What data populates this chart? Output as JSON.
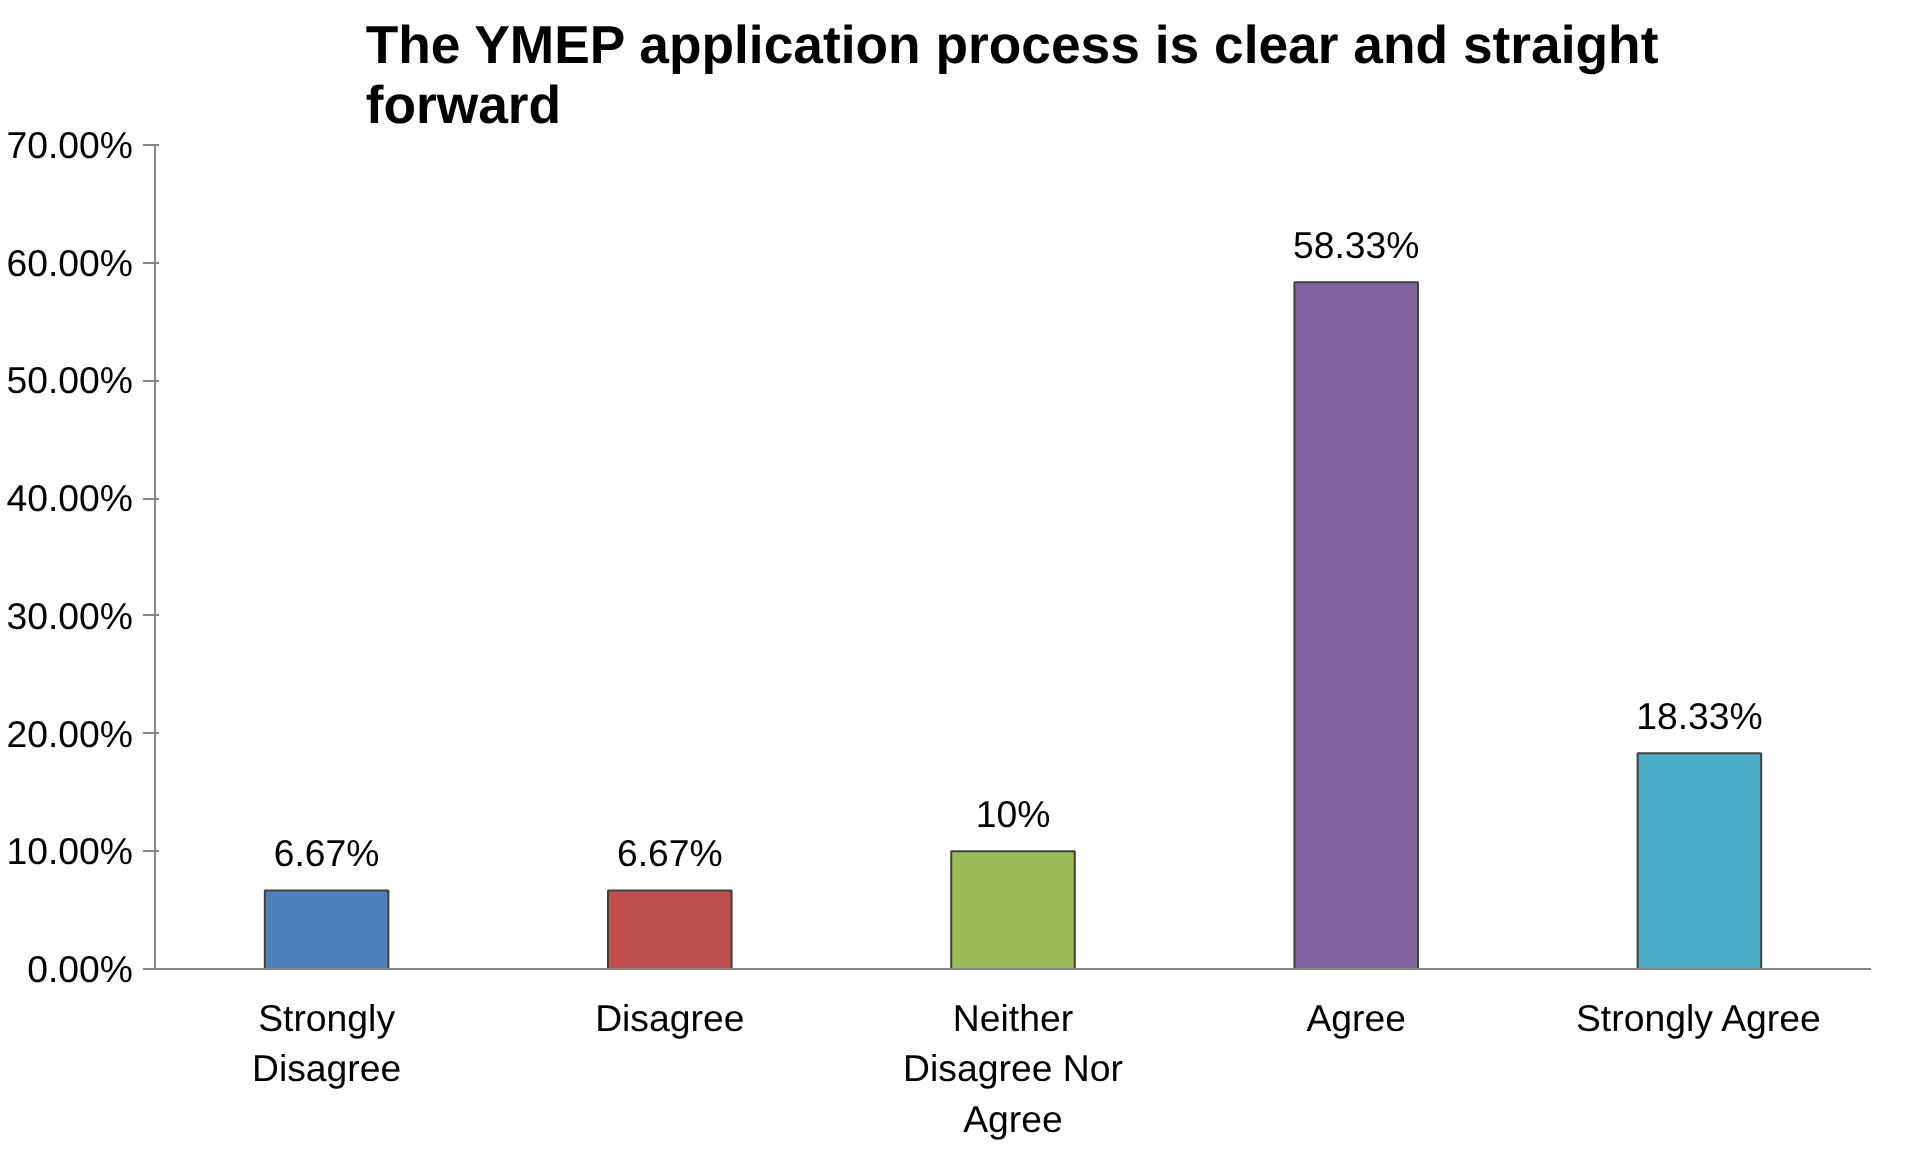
{
  "chart_data": {
    "type": "bar",
    "title": "The YMEP application process is clear and straight forward",
    "categories": [
      "Strongly Disagree",
      "Disagree",
      "Neither Disagree Nor Agree",
      "Agree",
      "Strongly Agree"
    ],
    "values": [
      6.67,
      6.67,
      10,
      58.33,
      18.33
    ],
    "colors": [
      "#4f81bd",
      "#c0504d",
      "#9bbb59",
      "#8064a2",
      "#4bacc6"
    ],
    "value_labels": [
      "6.67%",
      "6.67%",
      "10%",
      "58.33%",
      "18.33%"
    ],
    "ylim": [
      0,
      70
    ],
    "yticks": [
      {
        "value": 0,
        "label": "0.00%"
      },
      {
        "value": 10,
        "label": "10.00%"
      },
      {
        "value": 20,
        "label": "20.00%"
      },
      {
        "value": 30,
        "label": "30.00%"
      },
      {
        "value": 40,
        "label": "40.00%"
      },
      {
        "value": 50,
        "label": "50.00%"
      },
      {
        "value": 60,
        "label": "60.00%"
      },
      {
        "value": 70,
        "label": "70.00%"
      }
    ],
    "grid": false
  }
}
